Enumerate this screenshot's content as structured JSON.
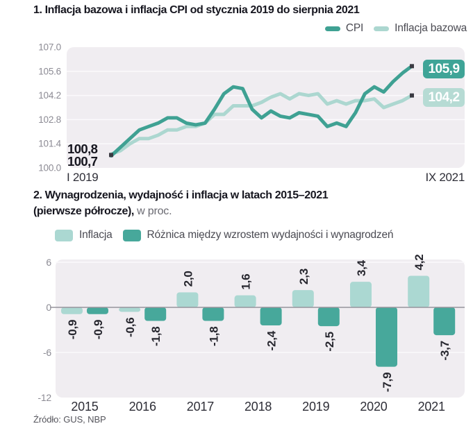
{
  "colors": {
    "plot_bg": "#F0EDF1",
    "grid_line": "#FBFAFC",
    "zero_line": "#96949C",
    "tick_text": "#8C8B94",
    "marker": "#3A3A42",
    "bar_label_text": "#26262E",
    "year_label_text": "#2E2E37",
    "title_text": "#16161F"
  },
  "chart_data": [
    {
      "type": "line",
      "title": "1. Inflacja bazowa i inflacja CPI od stycznia 2019 do sierpnia 2021",
      "x_axis": {
        "start_label": "I 2019",
        "end_label": "IX 2021"
      },
      "y_ticks": [
        "107.0",
        "105.6",
        "104.2",
        "102.8",
        "101.4",
        "100.0"
      ],
      "ylim": [
        100.0,
        107.0
      ],
      "legend_position": "top-right",
      "grid": true,
      "series": [
        {
          "name": "CPI",
          "color": "#3FA193",
          "badge_color": "#3FA497",
          "start_label": "100,7",
          "end_label": "105,9",
          "values": [
            100.7,
            101.2,
            101.7,
            102.2,
            102.4,
            102.6,
            102.9,
            102.9,
            102.6,
            102.5,
            102.6,
            103.4,
            104.3,
            104.7,
            104.6,
            103.4,
            102.9,
            103.3,
            103.0,
            102.9,
            103.2,
            103.1,
            103.0,
            102.4,
            102.6,
            102.4,
            103.2,
            104.3,
            104.7,
            104.4,
            105.0,
            105.5,
            105.9
          ]
        },
        {
          "name": "Inflacja bazowa",
          "color": "#ACD7D0",
          "badge_color": "#B6DBD4",
          "start_label": "100,8",
          "end_label": "104,2",
          "values": [
            100.8,
            101.0,
            101.4,
            101.7,
            101.7,
            101.9,
            102.2,
            102.2,
            102.4,
            102.4,
            102.6,
            103.1,
            103.1,
            103.6,
            103.6,
            103.6,
            103.8,
            104.1,
            104.3,
            104.0,
            104.3,
            104.2,
            104.3,
            103.7,
            103.9,
            103.7,
            103.9,
            103.9,
            104.0,
            103.5,
            103.7,
            103.9,
            104.2
          ]
        }
      ]
    },
    {
      "type": "bar",
      "title_lines": {
        "line1": "2. Wynagrodzenia, wydajność i inflacja w latach 2015–2021",
        "line2_bold": "(pierwsze półrocze),",
        "line2_regular": " w proc."
      },
      "categories": [
        "2015",
        "2016",
        "2017",
        "2018",
        "2019",
        "2020",
        "2021"
      ],
      "y_ticks": [
        "6",
        "0",
        "-6",
        "-12"
      ],
      "ylim": [
        -12,
        6
      ],
      "legend_position": "top-left",
      "series": [
        {
          "name": "Inflacja",
          "color": "#ABD8D2",
          "values": [
            -0.9,
            -0.6,
            2.0,
            1.6,
            2.3,
            3.4,
            4.2
          ],
          "value_labels": [
            "-0,9",
            "-0,6",
            "2,0",
            "1,6",
            "2,3",
            "3,4",
            "4,2"
          ]
        },
        {
          "name": "Różnica między wzrostem wydajności i wynagrodzeń",
          "color": "#47A89B",
          "values": [
            -0.9,
            -1.8,
            -1.8,
            -2.4,
            -2.5,
            -7.9,
            -3.7
          ],
          "value_labels": [
            "-0,9",
            "-1,8",
            "-1,8",
            "-2,4",
            "-2,5",
            "-7,9",
            "-3,7"
          ]
        }
      ],
      "source": "Źródło: GUS, NBP"
    }
  ]
}
